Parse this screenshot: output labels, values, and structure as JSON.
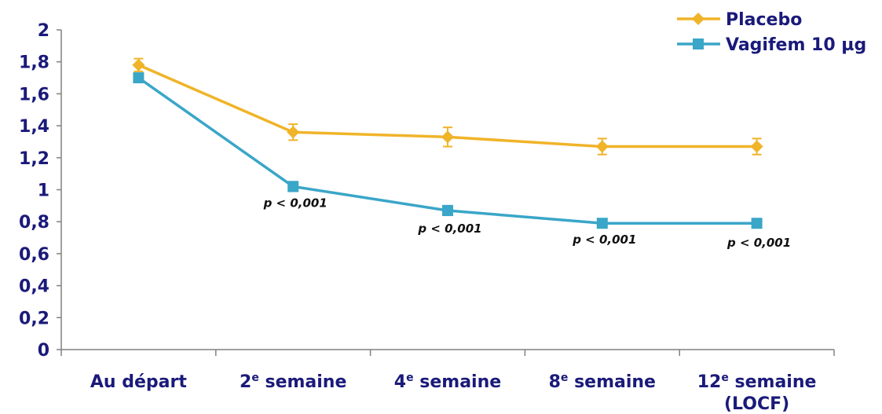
{
  "chart_data": {
    "type": "line",
    "categories": [
      "Au départ",
      "2e semaine",
      "4e semaine",
      "8e semaine",
      "12e semaine (LOCF)"
    ],
    "category_labels": [
      {
        "main": "Au départ",
        "sup": "",
        "rest": "",
        "line2": ""
      },
      {
        "main": "2",
        "sup": "e",
        "rest": " semaine",
        "line2": ""
      },
      {
        "main": "4",
        "sup": "e",
        "rest": " semaine",
        "line2": ""
      },
      {
        "main": "8",
        "sup": "e",
        "rest": " semaine",
        "line2": ""
      },
      {
        "main": "12",
        "sup": "e",
        "rest": " semaine",
        "line2": "(LOCF)"
      }
    ],
    "series": [
      {
        "name": "Placebo",
        "color": "#f0b429",
        "marker": "diamond",
        "values": [
          1.78,
          1.36,
          1.33,
          1.27,
          1.27
        ],
        "errors": [
          0.04,
          0.05,
          0.06,
          0.05,
          0.05
        ]
      },
      {
        "name": "Vagifem 10 µg",
        "color": "#3aa6c8",
        "marker": "square",
        "values": [
          1.7,
          1.02,
          0.87,
          0.79,
          0.79
        ],
        "errors": [
          0.02,
          0.03,
          0.03,
          0.02,
          0.02
        ]
      }
    ],
    "annotations": [
      "p < 0,001",
      "p < 0,001",
      "p < 0,001",
      "p < 0,001"
    ],
    "yticks": [
      "0",
      "0,2",
      "0,4",
      "0,6",
      "0,8",
      "1",
      "1,2",
      "1,4",
      "1,6",
      "1,8",
      "2"
    ],
    "ylim": [
      0,
      2
    ],
    "title": "",
    "xlabel": "",
    "ylabel": "",
    "grid": false,
    "legend_position": "top-right",
    "axis_color": "#808080",
    "label_color": "#1a1a7a"
  }
}
